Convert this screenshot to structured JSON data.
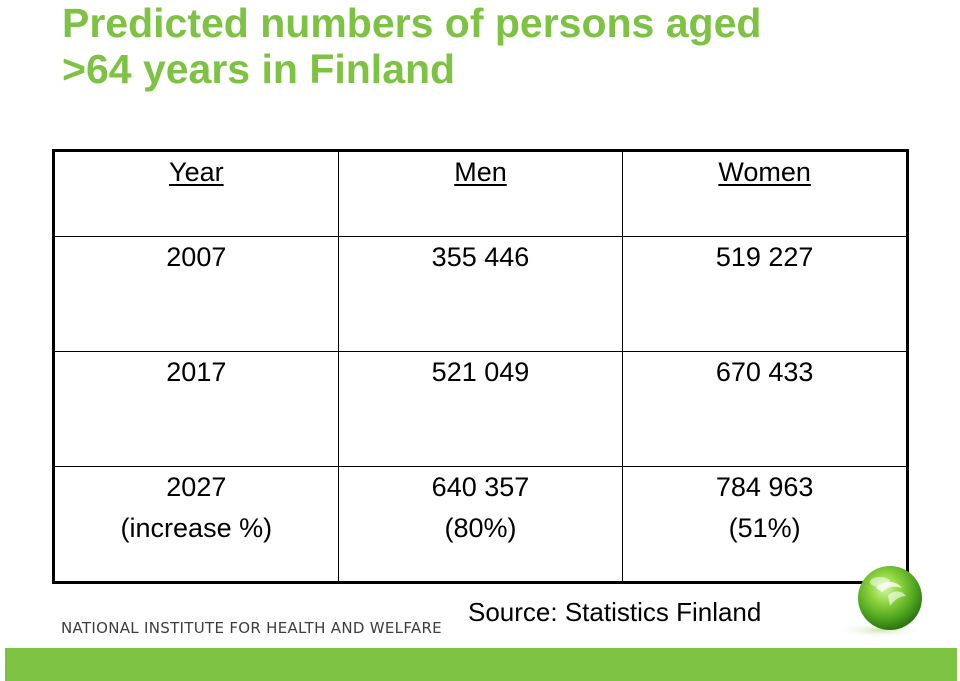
{
  "slide": {
    "title_line1": "Predicted numbers of persons aged",
    "title_line2": ">64 years in Finland",
    "title_color": "#7dc242"
  },
  "table": {
    "headers": [
      "Year",
      "Men",
      "Women"
    ],
    "rows": [
      {
        "year": "2007",
        "year_sub": "",
        "men": "355 446",
        "men_sub": "",
        "women": "519 227",
        "women_sub": ""
      },
      {
        "year": "2017",
        "year_sub": "",
        "men": "521 049",
        "men_sub": "",
        "women": "670 433",
        "women_sub": ""
      },
      {
        "year": "2027",
        "year_sub": "(increase %)",
        "men": "640 357",
        "men_sub": "(80%)",
        "women": "784 963",
        "women_sub": "(51%)"
      }
    ]
  },
  "footer": {
    "source": "Source: Statistics Finland",
    "institute": "NATIONAL INSTITUTE FOR HEALTH AND WELFARE",
    "logo_icon": "green-sphere-logo-icon",
    "bar_color": "#7dc242"
  }
}
